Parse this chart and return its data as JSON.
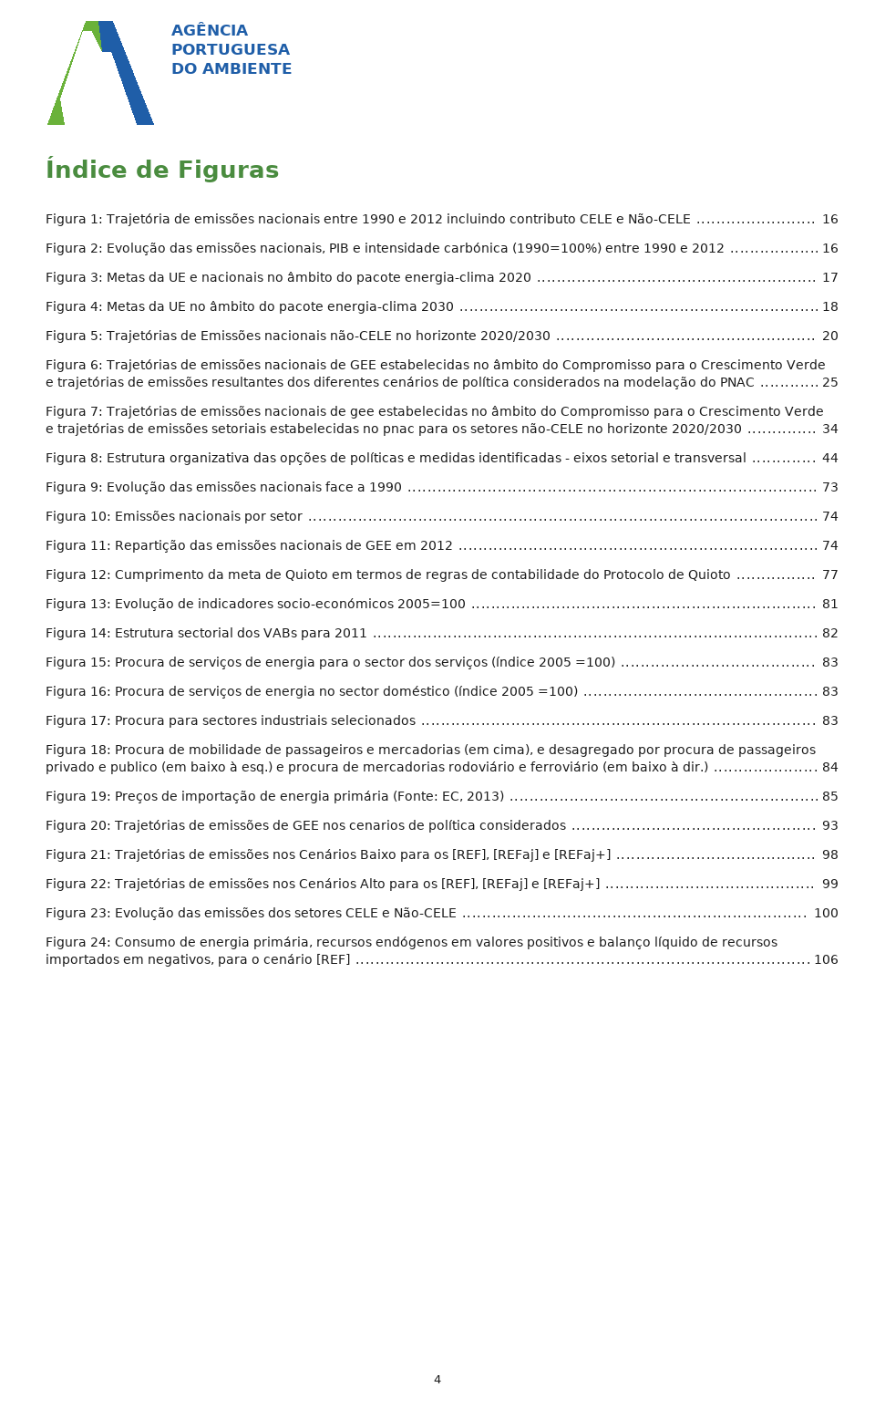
{
  "title": "Índice de Figuras",
  "title_color": "#4a8c3f",
  "title_fontsize": 22,
  "background_color": "#ffffff",
  "text_color": "#1a1a1a",
  "logo_color_blue": "#1f5ea8",
  "logo_color_green": "#6ab23a",
  "page_number": "4",
  "entries": [
    {
      "label": "Figura 1: Trajetória de emissões nacionais entre 1990 e 2012 incluindo contributo CELE e Não-CELE",
      "page": "16"
    },
    {
      "label": "Figura 2: Evolução das emissões nacionais, PIB e intensidade carbónica (1990=100%) entre 1990 e 2012",
      "page": "16"
    },
    {
      "label": "Figura 3: Metas da UE e nacionais no âmbito do pacote energia-clima 2020",
      "page": "17"
    },
    {
      "label": "Figura 4: Metas da UE no âmbito do pacote energia-clima 2030",
      "page": "18"
    },
    {
      "label": "Figura 5: Trajetórias de Emissões nacionais não-CELE no horizonte 2020/2030",
      "page": "20"
    },
    {
      "label": "Figura 6: Trajetórias de emissões nacionais de GEE estabelecidas no âmbito do Compromisso para o Crescimento Verde e trajetórias de emissões resultantes dos diferentes cenários de política considerados na modelação do PNAC",
      "page": "25"
    },
    {
      "label": "Figura 7: Trajetórias de emissões nacionais de gee estabelecidas no âmbito do Compromisso para o Crescimento Verde e  trajetórias de emissões setoriais estabelecidas no pnac para os setores não-CELE no horizonte 2020/2030",
      "page": "34"
    },
    {
      "label": "Figura 8: Estrutura organizativa das opções de políticas e medidas identificadas - eixos setorial e transversal",
      "page": "44"
    },
    {
      "label": "Figura 9: Evolução das emissões nacionais face a 1990",
      "page": "73"
    },
    {
      "label": "Figura 10: Emissões nacionais por setor",
      "page": "74"
    },
    {
      "label": "Figura 11: Repartição das emissões nacionais de GEE em 2012",
      "page": "74"
    },
    {
      "label": "Figura 12: Cumprimento da meta de Quioto em termos de regras de contabilidade do Protocolo de Quioto",
      "page": "77"
    },
    {
      "label": "Figura 13: Evolução de indicadores socio-económicos 2005=100",
      "page": "81"
    },
    {
      "label": "Figura 14: Estrutura sectorial dos VABs para 2011",
      "page": "82"
    },
    {
      "label": "Figura 15: Procura de serviços de energia para o sector dos serviços (índice 2005 =100)",
      "page": "83"
    },
    {
      "label": "Figura 16: Procura de serviços de energia no sector doméstico (índice 2005 =100)",
      "page": "83"
    },
    {
      "label": "Figura 17: Procura para sectores industriais selecionados",
      "page": "83"
    },
    {
      "label": "Figura 18: Procura de mobilidade de passageiros e mercadorias (em cima), e desagregado por procura de passageiros privado e publico (em baixo à esq.) e procura de mercadorias rodoviário e ferroviário (em baixo à dir.)",
      "page": "84"
    },
    {
      "label": "Figura 19: Preços de importação de energia primária (Fonte: EC, 2013)",
      "page": "85"
    },
    {
      "label": "Figura 20: Trajetórias de emissões de GEE nos cenarios de política considerados",
      "page": "93"
    },
    {
      "label": "Figura 21: Trajetórias de emissões nos Cenários Baixo para os [REF], [REFaj] e [REFaj+]",
      "page": "98"
    },
    {
      "label": "Figura 22: Trajetórias de emissões nos Cenários Alto para os [REF], [REFaj] e [REFaj+]",
      "page": "99"
    },
    {
      "label": "Figura 23: Evolução das emissões dos setores CELE e Não-CELE",
      "page": "100"
    },
    {
      "label": "Figura 24: Consumo de energia primária, recursos endógenos em valores positivos e balanço líquido de recursos importados em negativos, para o cenário [REF]",
      "page": "106"
    }
  ]
}
